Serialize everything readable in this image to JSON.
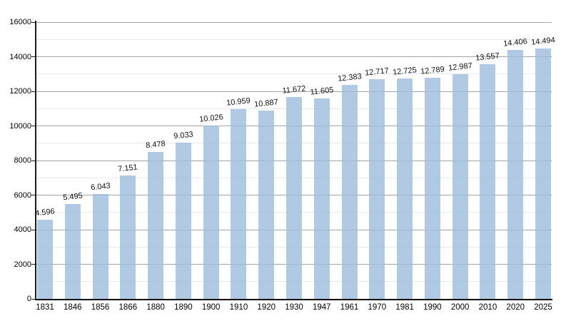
{
  "chart_data": {
    "type": "bar",
    "title": "",
    "xlabel": "",
    "ylabel": "",
    "categories": [
      "1831",
      "1846",
      "1856",
      "1866",
      "1880",
      "1890",
      "1900",
      "1910",
      "1920",
      "1930",
      "1947",
      "1961",
      "1970",
      "1981",
      "1990",
      "2000",
      "2010",
      "2020",
      "2025"
    ],
    "values": [
      4596,
      5495,
      6043,
      7151,
      8478,
      9033,
      10026,
      10959,
      10887,
      11672,
      11605,
      12383,
      12717,
      12725,
      12789,
      12987,
      13557,
      14406,
      14494
    ],
    "value_labels": [
      "4.596",
      "5.495",
      "6.043",
      "7.151",
      "8.478",
      "9.033",
      "10.026",
      "10.959",
      "10.887",
      "11.672",
      "11.605",
      "12.383",
      "12.717",
      "12.725",
      "12.789",
      "12.987",
      "13.557",
      "14.406",
      "14.494"
    ],
    "ylim": [
      0,
      16000
    ],
    "y_major_ticks": [
      0,
      2000,
      4000,
      6000,
      8000,
      10000,
      12000,
      14000,
      16000
    ],
    "y_minor_step": 1000,
    "grid": "on",
    "legend": "none",
    "colors": {
      "bar_fill_rgba": "rgba(160, 190, 222, 0.82)",
      "major_grid": "#a3a3a3",
      "minor_grid": "#e9e9e9",
      "axis": "#1c1c1c",
      "text": "#000000",
      "background": "#ffffff"
    }
  }
}
